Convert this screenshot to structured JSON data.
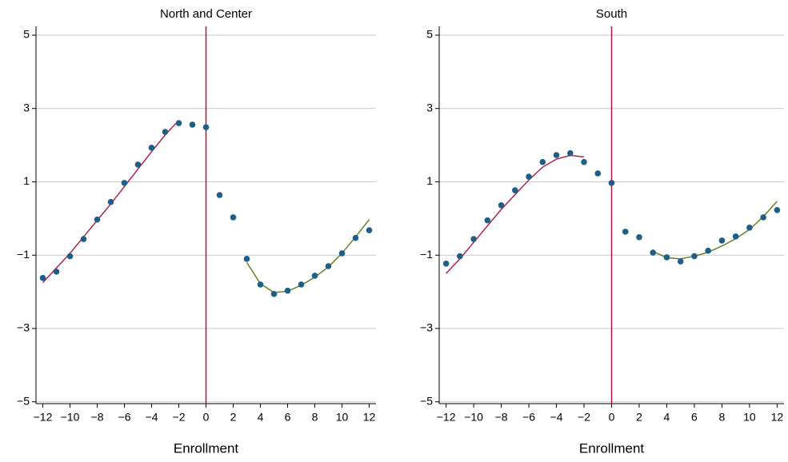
{
  "chart_data": [
    {
      "type": "scatter",
      "title": "North and Center",
      "x_label": "Enrollment",
      "xlim": [
        -12.5,
        12.5
      ],
      "ylim": [
        -5.05,
        5.24
      ],
      "xticks": [
        {
          "value": -12,
          "label": "−12"
        },
        {
          "value": -10,
          "label": "−10"
        },
        {
          "value": -8,
          "label": "−8"
        },
        {
          "value": -6,
          "label": "−6"
        },
        {
          "value": -4,
          "label": "−4"
        },
        {
          "value": -2,
          "label": "−2"
        },
        0,
        2,
        4,
        6,
        8,
        10,
        12
      ],
      "yticks": [
        {
          "value": -5,
          "label": "−5"
        },
        {
          "value": -3,
          "label": "−3"
        },
        {
          "value": -1,
          "label": "−1"
        },
        1,
        3,
        5
      ],
      "grid": true,
      "vline": 0,
      "vline_color": "#b0173f",
      "x": [
        -12,
        -11,
        -10,
        -9,
        -8,
        -7,
        -6,
        -5,
        -4,
        -3,
        -2,
        -1,
        0,
        1,
        2,
        3,
        4,
        5,
        6,
        7,
        8,
        9,
        10,
        11,
        12
      ],
      "values": [
        -1.62,
        -1.45,
        -1.03,
        -0.56,
        -0.03,
        0.45,
        0.97,
        1.47,
        1.93,
        2.36,
        2.6,
        2.56,
        2.49,
        0.64,
        0.03,
        -1.1,
        -1.8,
        -2.06,
        -1.97,
        -1.8,
        -1.56,
        -1.3,
        -0.95,
        -0.53,
        -0.32
      ],
      "color": "#1f5f87",
      "lines": [
        {
          "color": "#b0173f",
          "x": [
            -12,
            -11,
            -10,
            -9,
            -8,
            -7,
            -6,
            -5,
            -4,
            -3,
            -2
          ],
          "values": [
            -1.75,
            -1.35,
            -0.95,
            -0.5,
            -0.05,
            0.4,
            0.87,
            1.35,
            1.82,
            2.28,
            2.68
          ]
        },
        {
          "color": "#5a7d1c",
          "x": [
            3,
            4,
            5,
            6,
            7,
            8,
            9,
            10,
            11,
            12
          ],
          "values": [
            -1.2,
            -1.78,
            -2.02,
            -1.98,
            -1.82,
            -1.6,
            -1.32,
            -0.95,
            -0.5,
            -0.03
          ]
        }
      ]
    },
    {
      "type": "scatter",
      "title": "South",
      "x_label": "Enrollment",
      "xlim": [
        -12.5,
        12.5
      ],
      "ylim": [
        -5.05,
        5.24
      ],
      "xticks": [
        {
          "value": -12,
          "label": "−12"
        },
        {
          "value": -10,
          "label": "−10"
        },
        {
          "value": -8,
          "label": "−8"
        },
        {
          "value": -6,
          "label": "−6"
        },
        {
          "value": -4,
          "label": "−4"
        },
        {
          "value": -2,
          "label": "−2"
        },
        0,
        2,
        4,
        6,
        8,
        10,
        12
      ],
      "yticks": [
        {
          "value": -5,
          "label": "−5"
        },
        {
          "value": -3,
          "label": "−3"
        },
        {
          "value": -1,
          "label": "−1"
        },
        1,
        3,
        5
      ],
      "grid": true,
      "vline": 0,
      "vline_color": "#b0173f",
      "x": [
        -12,
        -11,
        -10,
        -9,
        -8,
        -7,
        -6,
        -5,
        -4,
        -3,
        -2,
        -1,
        0,
        1,
        2,
        3,
        4,
        5,
        6,
        7,
        8,
        9,
        10,
        11,
        12
      ],
      "values": [
        -1.23,
        -1.03,
        -0.56,
        -0.05,
        0.36,
        0.77,
        1.14,
        1.54,
        1.73,
        1.78,
        1.54,
        1.23,
        0.97,
        -0.36,
        -0.51,
        -0.93,
        -1.06,
        -1.17,
        -1.03,
        -0.88,
        -0.6,
        -0.49,
        -0.25,
        0.03,
        0.23
      ],
      "color": "#1f5f87",
      "lines": [
        {
          "color": "#b0173f",
          "x": [
            -12,
            -11,
            -10,
            -9,
            -8,
            -7,
            -6,
            -5,
            -4,
            -3,
            -2
          ],
          "values": [
            -1.5,
            -1.1,
            -0.65,
            -0.2,
            0.25,
            0.65,
            1.05,
            1.4,
            1.62,
            1.72,
            1.68
          ]
        },
        {
          "color": "#5a7d1c",
          "x": [
            3,
            4,
            5,
            6,
            7,
            8,
            9,
            10,
            11,
            12
          ],
          "values": [
            -0.9,
            -1.07,
            -1.1,
            -1.03,
            -0.92,
            -0.75,
            -0.55,
            -0.3,
            0.05,
            0.47
          ]
        }
      ]
    }
  ]
}
